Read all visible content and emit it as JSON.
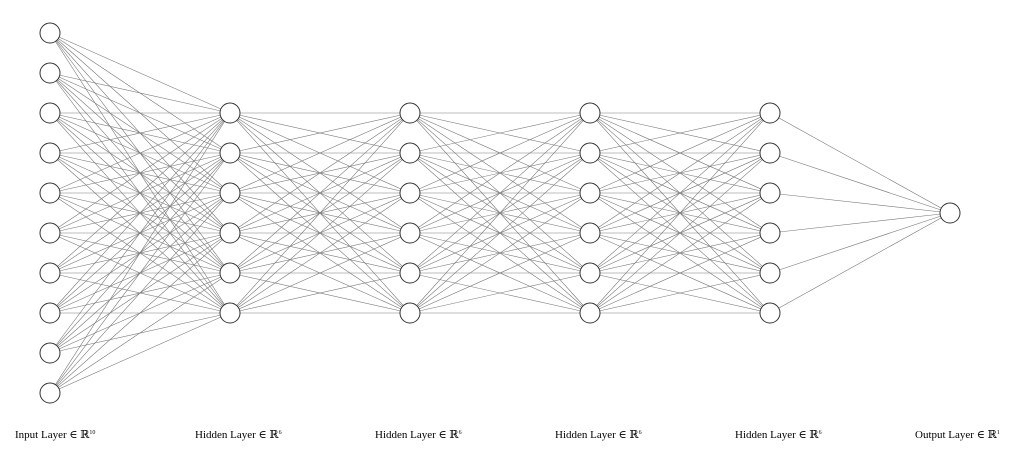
{
  "network": {
    "layers": [
      {
        "units": 10,
        "label": "Input Layer ∈ ℝ",
        "dimension": "10"
      },
      {
        "units": 6,
        "label": "Hidden Layer ∈ ℝ",
        "dimension": "6"
      },
      {
        "units": 6,
        "label": "Hidden Layer ∈ ℝ",
        "dimension": "6"
      },
      {
        "units": 6,
        "label": "Hidden Layer ∈ ℝ",
        "dimension": "6"
      },
      {
        "units": 6,
        "label": "Hidden Layer ∈ ℝ",
        "dimension": "6"
      },
      {
        "units": 1,
        "label": "Output Layer ∈ ℝ",
        "dimension": "1"
      }
    ],
    "connectivity": "fully-connected",
    "colors": {
      "node_fill": "#ffffff",
      "node_stroke": "#333333",
      "edge": "#7a7a7a",
      "text": "#000000"
    }
  }
}
